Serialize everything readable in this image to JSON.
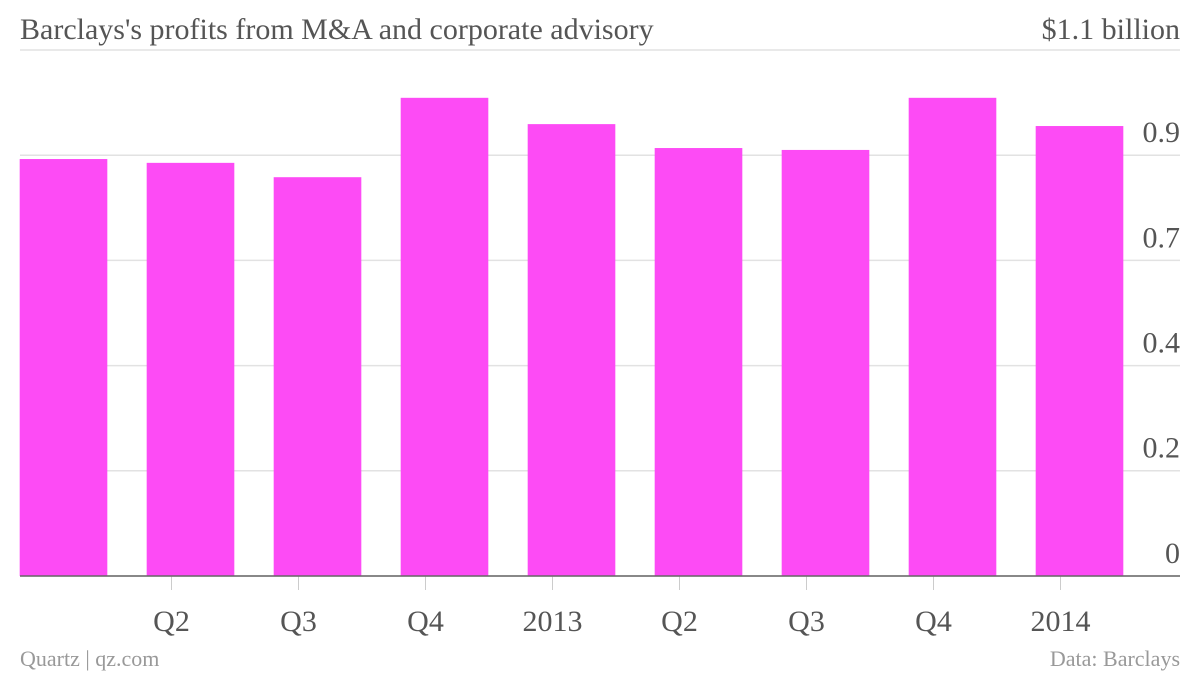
{
  "chart_data": {
    "type": "bar",
    "title": "Barclays's profits from M&A and corporate advisory",
    "source_left": "Quartz | qz.com",
    "source_right": "Data: Barclays",
    "categories": [
      null,
      "Q2",
      "Q3",
      "Q4",
      "2013",
      "Q2",
      "Q3",
      "Q4",
      "2014"
    ],
    "values": [
      0.872,
      0.864,
      0.834,
      1.0,
      0.945,
      0.895,
      0.891,
      1.0,
      0.941
    ],
    "color": "#fd4bf5",
    "ylim": [
      0,
      1.1
    ],
    "yticks": [
      0,
      {
        "value": 0.22,
        "label": "0.2"
      },
      {
        "value": 0.44,
        "label": "0.4"
      },
      {
        "value": 0.66,
        "label": "0.7"
      },
      {
        "value": 0.88,
        "label": "0.9"
      },
      {
        "value": 1.1,
        "label": "$1.1 billion"
      }
    ],
    "grid": true
  }
}
